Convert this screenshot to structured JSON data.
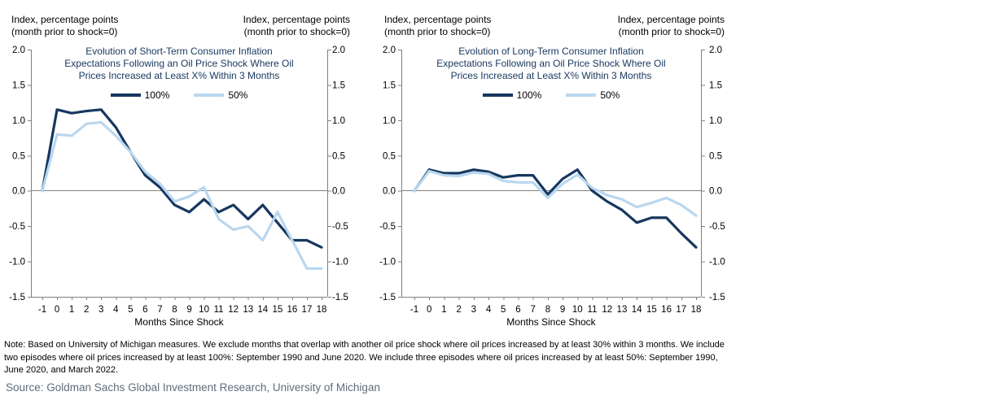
{
  "colors": {
    "axis": "#808080",
    "title_text": "#17375e",
    "series_dark": "#17375e",
    "series_light": "#b9d7ef",
    "source_text": "#5f6d7a"
  },
  "note": "Note: Based on University of Michigan measures. We exclude months that overlap with another oil price shock where oil prices increased by at least 30% within 3 months. We include\ntwo episodes where oil prices increased by at least 100%: September 1990 and June 2020. We include three episodes where oil prices increased by at least 50%: September 1990,\nJune 2020, and March 2022.",
  "source": "Source: Goldman Sachs Global Investment Research, University of Michigan",
  "chart_data": [
    {
      "type": "line",
      "title": "Evolution of Short-Term Consumer Inflation\nExpectations Following an Oil Price Shock Where Oil\nPrices Increased at Least X% Within 3 Months",
      "caption_left": "Index, percentage points\n(month prior to shock=0)",
      "caption_right": "Index, percentage points\n(month prior to shock=0)",
      "xlabel": "Months Since Shock",
      "x": [
        -1,
        0,
        1,
        2,
        3,
        4,
        5,
        6,
        7,
        8,
        9,
        10,
        11,
        12,
        13,
        14,
        15,
        16,
        17,
        18
      ],
      "ylim": [
        -1.5,
        2.0
      ],
      "ytick_step": 0.5,
      "grid": "zero-line-only",
      "legend_position": "top-center",
      "series": [
        {
          "name": "100%",
          "color": "#17375e",
          "values": [
            0,
            1.15,
            1.1,
            1.13,
            1.15,
            0.9,
            0.55,
            0.22,
            0.05,
            -0.2,
            -0.3,
            -0.12,
            -0.3,
            -0.2,
            -0.4,
            -0.2,
            -0.45,
            -0.7,
            -0.7,
            -0.8
          ]
        },
        {
          "name": "50%",
          "color": "#b9d7ef",
          "values": [
            0,
            0.8,
            0.78,
            0.95,
            0.97,
            0.78,
            0.55,
            0.27,
            0.1,
            -0.15,
            -0.08,
            0.05,
            -0.4,
            -0.55,
            -0.5,
            -0.7,
            -0.3,
            -0.7,
            -1.1,
            -1.1
          ]
        }
      ]
    },
    {
      "type": "line",
      "title": "Evolution of Long-Term Consumer Inflation\nExpectations Following an Oil Price Shock Where Oil\nPrices Increased at Least X% Within 3 Months",
      "caption_left": "Index, percentage points\n(month prior to shock=0)",
      "caption_right": "Index, percentage points\n(month prior to shock=0)",
      "xlabel": "Months Since Shock",
      "x": [
        -1,
        0,
        1,
        2,
        3,
        4,
        5,
        6,
        7,
        8,
        9,
        10,
        11,
        12,
        13,
        14,
        15,
        16,
        17,
        18
      ],
      "ylim": [
        -1.5,
        2.0
      ],
      "ytick_step": 0.5,
      "grid": "zero-line-only",
      "legend_position": "top-center",
      "series": [
        {
          "name": "100%",
          "color": "#17375e",
          "values": [
            0,
            0.3,
            0.25,
            0.25,
            0.3,
            0.27,
            0.19,
            0.22,
            0.22,
            -0.05,
            0.17,
            0.3,
            0.0,
            -0.15,
            -0.27,
            -0.45,
            -0.38,
            -0.38,
            -0.6,
            -0.8
          ]
        },
        {
          "name": "50%",
          "color": "#b9d7ef",
          "values": [
            0,
            0.28,
            0.22,
            0.21,
            0.26,
            0.24,
            0.14,
            0.12,
            0.12,
            -0.1,
            0.1,
            0.23,
            0.04,
            -0.06,
            -0.12,
            -0.23,
            -0.17,
            -0.1,
            -0.2,
            -0.35
          ]
        }
      ]
    }
  ]
}
